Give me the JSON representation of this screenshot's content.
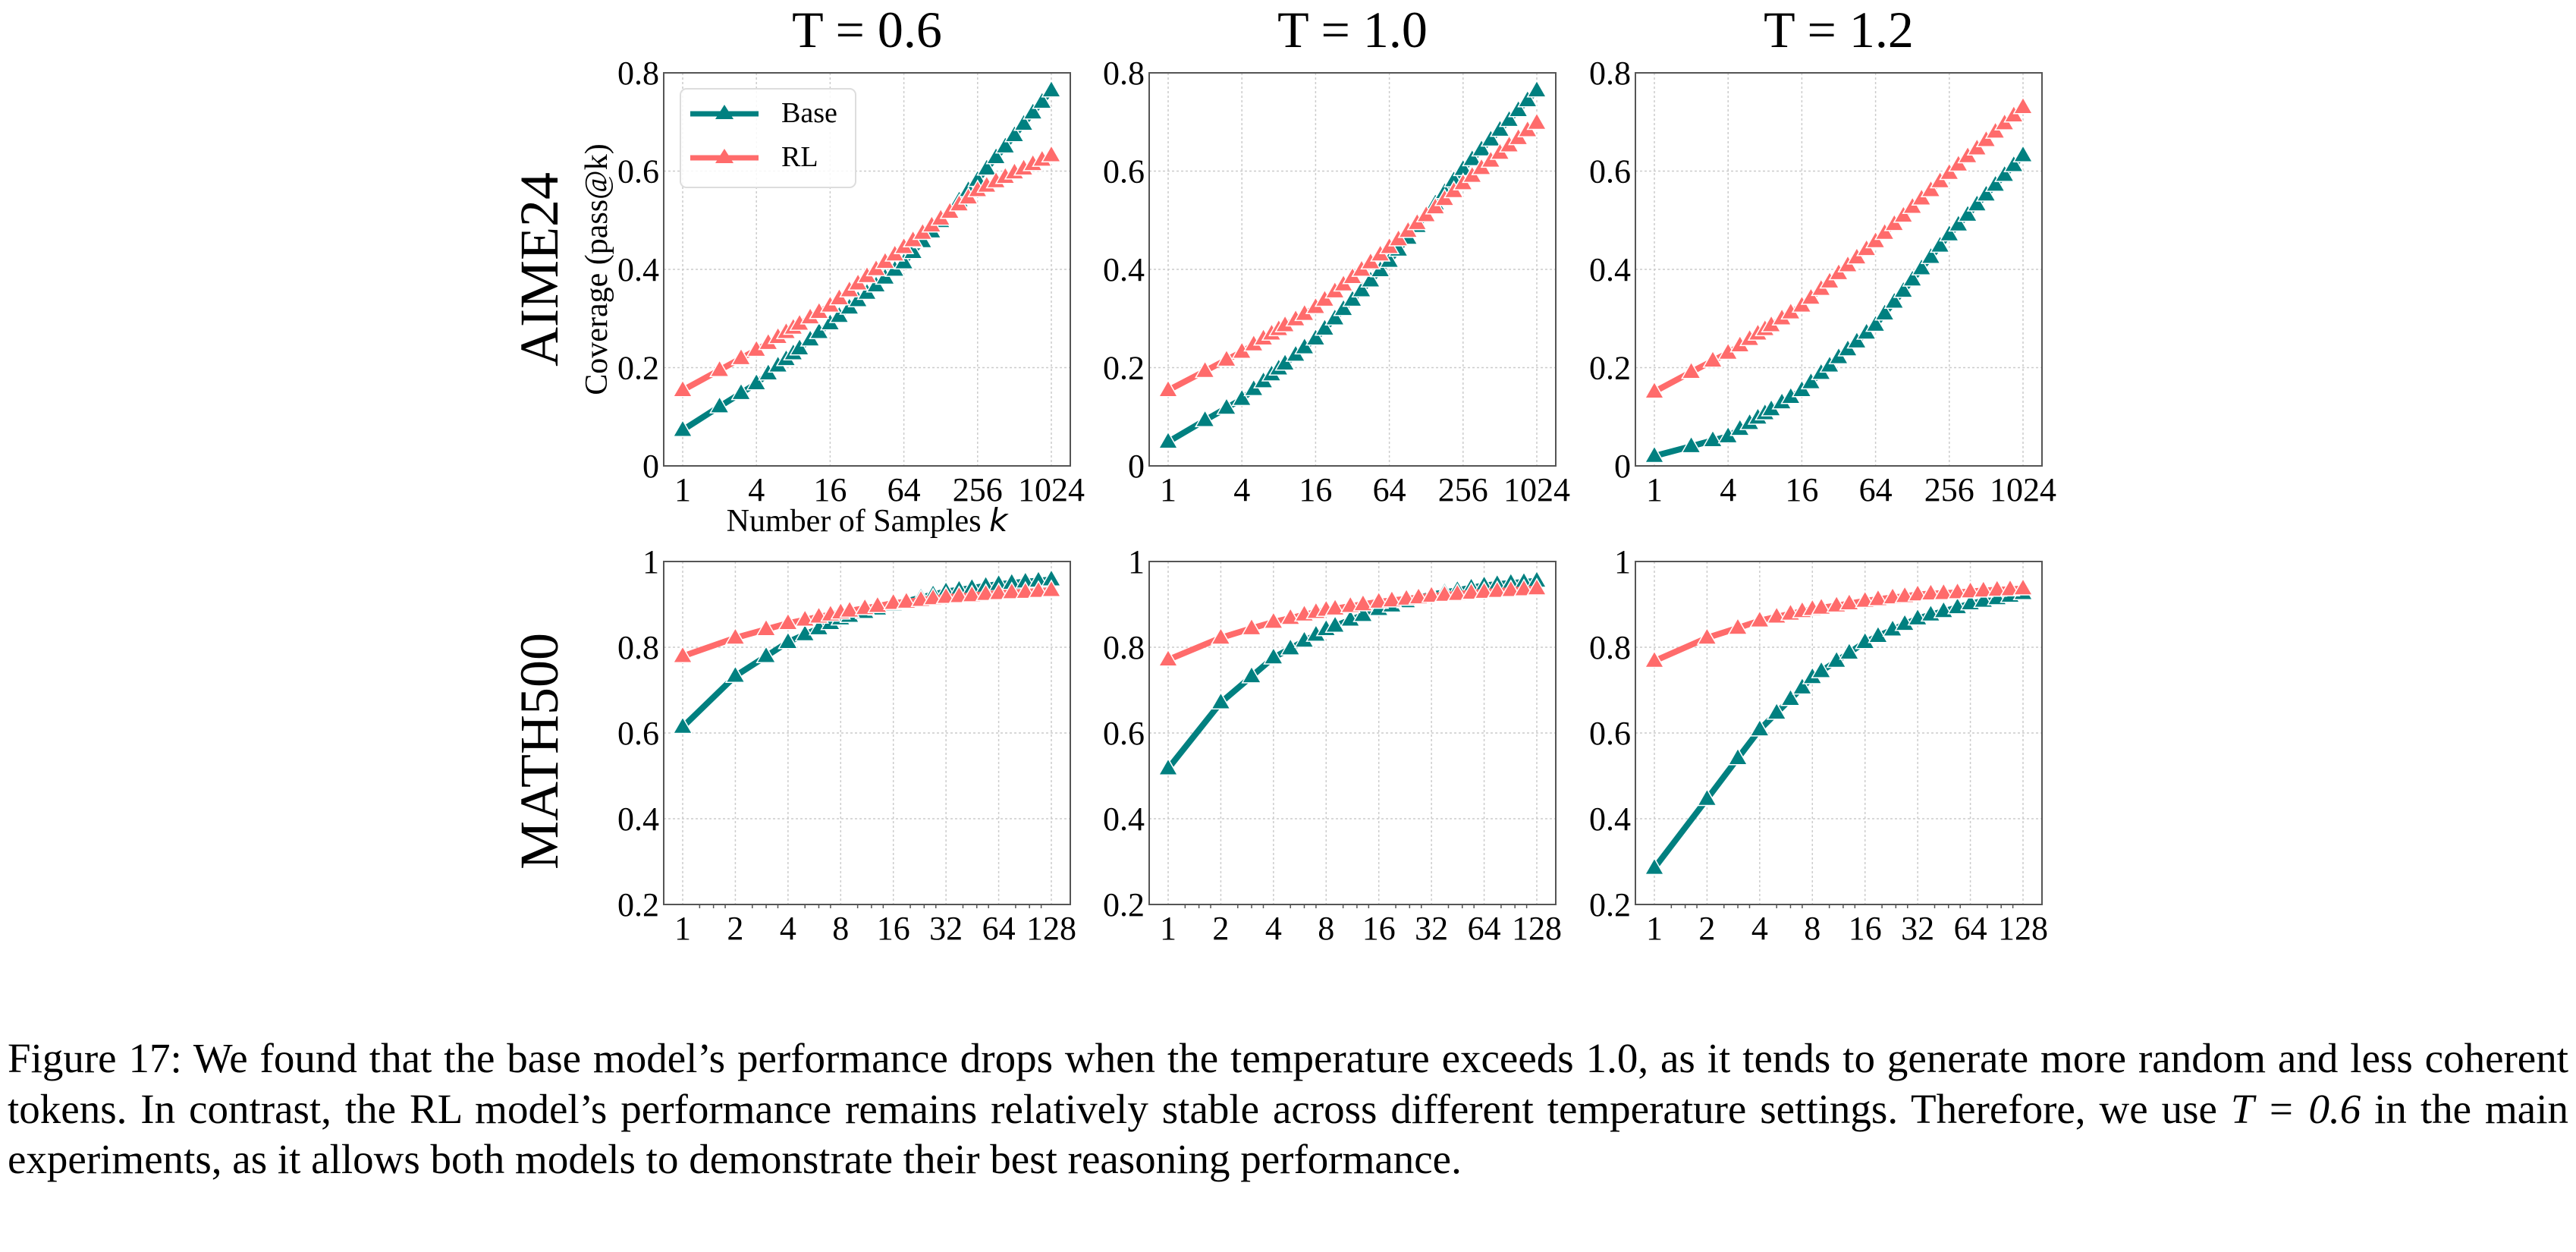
{
  "figure": {
    "col_titles": [
      "T = 0.6",
      "T = 1.0",
      "T = 1.2"
    ],
    "row_labels": [
      "AIME24",
      "MATH500"
    ],
    "ylabel": "Coverage (pass@k)",
    "xlabel_prefix": "Number of Samples ",
    "xlabel_var": "k"
  },
  "legend": {
    "position": "upper-left of top-left panel",
    "items": [
      {
        "label": "Base",
        "color": "#008080",
        "marker": "triangle-up"
      },
      {
        "label": "RL",
        "color": "#FF6B6B",
        "marker": "triangle-up"
      }
    ]
  },
  "colors": {
    "base": "#008080",
    "rl": "#FF6B6B",
    "grid": "#cccccc",
    "axis": "#555555"
  },
  "chart_data": [
    {
      "type": "line",
      "panel": "AIME24, T = 0.6",
      "title": "T = 0.6",
      "row_label": "AIME24",
      "xlabel": "Number of Samples k",
      "ylabel": "Coverage (pass@k)",
      "xscale": "log2",
      "xlim": [
        1,
        1024
      ],
      "ylim": [
        0,
        0.8
      ],
      "grid": true,
      "xticks": [
        1,
        4,
        16,
        64,
        256,
        1024
      ],
      "xtick_labels": [
        "1",
        "4",
        "16",
        "64",
        "256",
        "1024"
      ],
      "yticks": [
        0,
        0.2,
        0.4,
        0.6,
        0.8
      ],
      "ytick_labels": [
        "0",
        "0.2",
        "0.4",
        "0.6",
        "0.8"
      ],
      "legend": "top-left",
      "x": [
        1,
        2,
        3,
        4,
        5,
        6,
        7,
        8,
        9,
        11,
        13,
        16,
        19,
        23,
        27,
        32,
        38,
        45,
        54,
        64,
        76,
        91,
        108,
        128,
        152,
        181,
        215,
        256,
        304,
        362,
        431,
        512,
        609,
        724,
        861,
        1024
      ],
      "series": [
        {
          "name": "Base",
          "values": [
            0.073,
            0.121,
            0.148,
            0.168,
            0.188,
            0.204,
            0.217,
            0.229,
            0.239,
            0.257,
            0.272,
            0.29,
            0.305,
            0.322,
            0.337,
            0.352,
            0.367,
            0.383,
            0.399,
            0.414,
            0.435,
            0.457,
            0.477,
            0.498,
            0.519,
            0.54,
            0.561,
            0.582,
            0.605,
            0.628,
            0.65,
            0.673,
            0.696,
            0.719,
            0.741,
            0.764
          ]
        },
        {
          "name": "RL",
          "values": [
            0.154,
            0.195,
            0.219,
            0.236,
            0.25,
            0.262,
            0.272,
            0.281,
            0.289,
            0.302,
            0.313,
            0.326,
            0.341,
            0.357,
            0.371,
            0.386,
            0.4,
            0.415,
            0.43,
            0.445,
            0.459,
            0.474,
            0.489,
            0.503,
            0.517,
            0.532,
            0.546,
            0.561,
            0.57,
            0.579,
            0.588,
            0.597,
            0.605,
            0.614,
            0.623,
            0.632
          ]
        }
      ]
    },
    {
      "type": "line",
      "panel": "AIME24, T = 1.0",
      "title": "T = 1.0",
      "row_label": "AIME24",
      "xscale": "log2",
      "xlim": [
        1,
        1024
      ],
      "ylim": [
        0,
        0.8
      ],
      "grid": true,
      "xticks": [
        1,
        4,
        16,
        64,
        256,
        1024
      ],
      "xtick_labels": [
        "1",
        "4",
        "16",
        "64",
        "256",
        "1024"
      ],
      "yticks": [
        0,
        0.2,
        0.4,
        0.6,
        0.8
      ],
      "ytick_labels": [
        "0",
        "0.2",
        "0.4",
        "0.6",
        "0.8"
      ],
      "x": [
        1,
        2,
        3,
        4,
        5,
        6,
        7,
        8,
        9,
        11,
        13,
        16,
        19,
        23,
        27,
        32,
        38,
        45,
        54,
        64,
        76,
        91,
        108,
        128,
        152,
        181,
        215,
        256,
        304,
        362,
        431,
        512,
        609,
        724,
        861,
        1024
      ],
      "series": [
        {
          "name": "Base",
          "values": [
            0.049,
            0.093,
            0.118,
            0.136,
            0.156,
            0.172,
            0.186,
            0.198,
            0.208,
            0.226,
            0.241,
            0.259,
            0.279,
            0.3,
            0.319,
            0.338,
            0.357,
            0.377,
            0.398,
            0.417,
            0.44,
            0.464,
            0.488,
            0.511,
            0.534,
            0.557,
            0.581,
            0.604,
            0.624,
            0.644,
            0.664,
            0.684,
            0.704,
            0.724,
            0.744,
            0.764
          ]
        },
        {
          "name": "RL",
          "values": [
            0.154,
            0.193,
            0.216,
            0.232,
            0.247,
            0.259,
            0.269,
            0.278,
            0.286,
            0.298,
            0.309,
            0.323,
            0.338,
            0.355,
            0.369,
            0.384,
            0.399,
            0.414,
            0.43,
            0.445,
            0.461,
            0.478,
            0.494,
            0.51,
            0.526,
            0.543,
            0.559,
            0.575,
            0.59,
            0.606,
            0.621,
            0.637,
            0.652,
            0.667,
            0.683,
            0.698
          ]
        }
      ]
    },
    {
      "type": "line",
      "panel": "AIME24, T = 1.2",
      "title": "T = 1.2",
      "row_label": "AIME24",
      "xscale": "log2",
      "xlim": [
        1,
        1024
      ],
      "ylim": [
        0,
        0.8
      ],
      "grid": true,
      "xticks": [
        1,
        4,
        16,
        64,
        256,
        1024
      ],
      "xtick_labels": [
        "1",
        "4",
        "16",
        "64",
        "256",
        "1024"
      ],
      "yticks": [
        0,
        0.2,
        0.4,
        0.6,
        0.8
      ],
      "ytick_labels": [
        "0",
        "0.2",
        "0.4",
        "0.6",
        "0.8"
      ],
      "x": [
        1,
        2,
        3,
        4,
        5,
        6,
        7,
        8,
        9,
        11,
        13,
        16,
        19,
        23,
        27,
        32,
        38,
        45,
        54,
        64,
        76,
        91,
        108,
        128,
        152,
        181,
        215,
        256,
        304,
        362,
        431,
        512,
        609,
        724,
        861,
        1024
      ],
      "series": [
        {
          "name": "Base",
          "values": [
            0.02,
            0.04,
            0.052,
            0.06,
            0.075,
            0.087,
            0.098,
            0.107,
            0.115,
            0.129,
            0.14,
            0.154,
            0.17,
            0.189,
            0.204,
            0.221,
            0.237,
            0.253,
            0.271,
            0.287,
            0.31,
            0.334,
            0.356,
            0.379,
            0.402,
            0.425,
            0.448,
            0.471,
            0.491,
            0.511,
            0.532,
            0.552,
            0.572,
            0.592,
            0.612,
            0.632
          ]
        },
        {
          "name": "RL",
          "values": [
            0.151,
            0.191,
            0.214,
            0.23,
            0.245,
            0.258,
            0.269,
            0.278,
            0.286,
            0.3,
            0.312,
            0.326,
            0.342,
            0.36,
            0.375,
            0.392,
            0.408,
            0.424,
            0.441,
            0.457,
            0.474,
            0.492,
            0.509,
            0.527,
            0.544,
            0.561,
            0.579,
            0.596,
            0.613,
            0.63,
            0.646,
            0.663,
            0.68,
            0.697,
            0.713,
            0.73
          ]
        }
      ]
    },
    {
      "type": "line",
      "panel": "MATH500, T = 0.6",
      "title": "",
      "row_label": "MATH500",
      "xscale": "log2",
      "xlim": [
        1,
        128
      ],
      "ylim": [
        0.2,
        1.0
      ],
      "grid": true,
      "xticks": [
        1,
        2,
        4,
        8,
        16,
        32,
        64,
        128
      ],
      "xtick_labels": [
        "1",
        "2",
        "4",
        "8",
        "16",
        "32",
        "64",
        "128"
      ],
      "yticks": [
        0.2,
        0.4,
        0.6,
        0.8,
        1.0
      ],
      "ytick_labels": [
        "0.2",
        "0.4",
        "0.6",
        "0.8",
        "1"
      ],
      "x": [
        1,
        2,
        3,
        4,
        5,
        6,
        7,
        8,
        9,
        11,
        13,
        16,
        19,
        23,
        27,
        32,
        38,
        45,
        54,
        64,
        76,
        91,
        108,
        128
      ],
      "series": [
        {
          "name": "Base",
          "values": [
            0.614,
            0.733,
            0.779,
            0.812,
            0.83,
            0.844,
            0.856,
            0.867,
            0.873,
            0.882,
            0.89,
            0.9,
            0.907,
            0.916,
            0.923,
            0.93,
            0.934,
            0.938,
            0.943,
            0.947,
            0.95,
            0.953,
            0.955,
            0.958
          ]
        },
        {
          "name": "RL",
          "values": [
            0.779,
            0.822,
            0.842,
            0.856,
            0.864,
            0.871,
            0.876,
            0.881,
            0.885,
            0.891,
            0.896,
            0.903,
            0.906,
            0.91,
            0.914,
            0.917,
            0.919,
            0.921,
            0.924,
            0.926,
            0.928,
            0.929,
            0.931,
            0.933
          ]
        }
      ]
    },
    {
      "type": "line",
      "panel": "MATH500, T = 1.0",
      "title": "",
      "row_label": "MATH500",
      "xscale": "log2",
      "xlim": [
        1,
        128
      ],
      "ylim": [
        0.2,
        1.0
      ],
      "grid": true,
      "xticks": [
        1,
        2,
        4,
        8,
        16,
        32,
        64,
        128
      ],
      "xtick_labels": [
        "1",
        "2",
        "4",
        "8",
        "16",
        "32",
        "64",
        "128"
      ],
      "yticks": [
        0.2,
        0.4,
        0.6,
        0.8,
        1.0
      ],
      "ytick_labels": [
        "0.2",
        "0.4",
        "0.6",
        "0.8",
        "1"
      ],
      "x": [
        1,
        2,
        3,
        4,
        5,
        6,
        7,
        8,
        9,
        11,
        13,
        16,
        19,
        23,
        27,
        32,
        38,
        45,
        54,
        64,
        76,
        91,
        108,
        128
      ],
      "series": [
        {
          "name": "Base",
          "values": [
            0.517,
            0.671,
            0.732,
            0.776,
            0.797,
            0.815,
            0.829,
            0.842,
            0.85,
            0.864,
            0.875,
            0.889,
            0.897,
            0.907,
            0.915,
            0.923,
            0.928,
            0.933,
            0.939,
            0.944,
            0.947,
            0.95,
            0.952,
            0.955
          ]
        },
        {
          "name": "RL",
          "values": [
            0.771,
            0.822,
            0.844,
            0.859,
            0.868,
            0.876,
            0.882,
            0.887,
            0.89,
            0.896,
            0.9,
            0.906,
            0.909,
            0.913,
            0.916,
            0.92,
            0.922,
            0.924,
            0.927,
            0.929,
            0.931,
            0.933,
            0.935,
            0.937
          ]
        }
      ]
    },
    {
      "type": "line",
      "panel": "MATH500, T = 1.2",
      "title": "",
      "row_label": "MATH500",
      "xscale": "log2",
      "xlim": [
        1,
        128
      ],
      "ylim": [
        0.2,
        1.0
      ],
      "grid": true,
      "xticks": [
        1,
        2,
        4,
        8,
        16,
        32,
        64,
        128
      ],
      "xtick_labels": [
        "1",
        "2",
        "4",
        "8",
        "16",
        "32",
        "64",
        "128"
      ],
      "yticks": [
        0.2,
        0.4,
        0.6,
        0.8,
        1.0
      ],
      "ytick_labels": [
        "0.2",
        "0.4",
        "0.6",
        "0.8",
        "1"
      ],
      "x": [
        1,
        2,
        3,
        4,
        5,
        6,
        7,
        8,
        9,
        11,
        13,
        16,
        19,
        23,
        27,
        32,
        38,
        45,
        54,
        64,
        76,
        91,
        108,
        128
      ],
      "series": [
        {
          "name": "Base",
          "values": [
            0.285,
            0.446,
            0.541,
            0.608,
            0.647,
            0.679,
            0.706,
            0.73,
            0.744,
            0.768,
            0.787,
            0.812,
            0.826,
            0.841,
            0.854,
            0.867,
            0.876,
            0.884,
            0.893,
            0.902,
            0.908,
            0.914,
            0.92,
            0.926
          ]
        },
        {
          "name": "RL",
          "values": [
            0.768,
            0.822,
            0.845,
            0.862,
            0.871,
            0.878,
            0.884,
            0.889,
            0.892,
            0.897,
            0.902,
            0.908,
            0.912,
            0.916,
            0.919,
            0.923,
            0.925,
            0.926,
            0.928,
            0.93,
            0.932,
            0.934,
            0.935,
            0.937
          ]
        }
      ]
    }
  ],
  "caption": {
    "label": "Figure 17:",
    "text_1": " We found that the base model’s performance drops when the temperature exceeds 1.0, as it tends to generate more random and less coherent tokens. In contrast, the RL model’s performance remains relatively stable across different temperature settings. Therefore, we use ",
    "math": "T = 0.6",
    "text_2": " in the main experiments, as it allows both models to demonstrate their best reasoning performance."
  }
}
